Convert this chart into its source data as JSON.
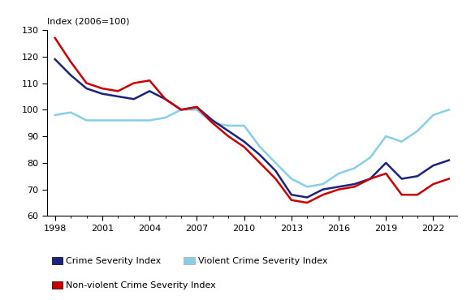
{
  "years": [
    1998,
    1999,
    2000,
    2001,
    2002,
    2003,
    2004,
    2005,
    2006,
    2007,
    2008,
    2009,
    2010,
    2011,
    2012,
    2013,
    2014,
    2015,
    2016,
    2017,
    2018,
    2019,
    2020,
    2021,
    2022,
    2023
  ],
  "crime_severity": [
    119,
    113,
    108,
    106,
    105,
    104,
    107,
    104,
    100,
    101,
    96,
    92,
    88,
    83,
    77,
    68,
    67,
    70,
    71,
    72,
    74,
    80,
    74,
    75,
    79,
    81
  ],
  "nonviolent_crime": [
    127,
    118,
    110,
    108,
    107,
    110,
    111,
    104,
    100,
    101,
    95,
    90,
    86,
    80,
    74,
    66,
    65,
    68,
    70,
    71,
    74,
    76,
    68,
    68,
    72,
    74
  ],
  "violent_crime": [
    98,
    99,
    96,
    96,
    96,
    96,
    96,
    97,
    100,
    100,
    95,
    94,
    94,
    86,
    80,
    74,
    71,
    72,
    76,
    78,
    82,
    90,
    88,
    92,
    98,
    100
  ],
  "crime_severity_color": "#1a237e",
  "nonviolent_color": "#cc0000",
  "violent_color": "#87ceeb",
  "ylim": [
    60,
    130
  ],
  "yticks": [
    60,
    70,
    80,
    90,
    100,
    110,
    120,
    130
  ],
  "xticks": [
    1998,
    2001,
    2004,
    2007,
    2010,
    2013,
    2016,
    2019,
    2022
  ],
  "ylabel": "Index (2006=100)",
  "legend_labels": [
    "Crime Severity Index",
    "Violent Crime Severity Index",
    "Non-violent Crime Severity Index"
  ],
  "linewidth": 1.8,
  "xlim": [
    1997.5,
    2023.5
  ]
}
